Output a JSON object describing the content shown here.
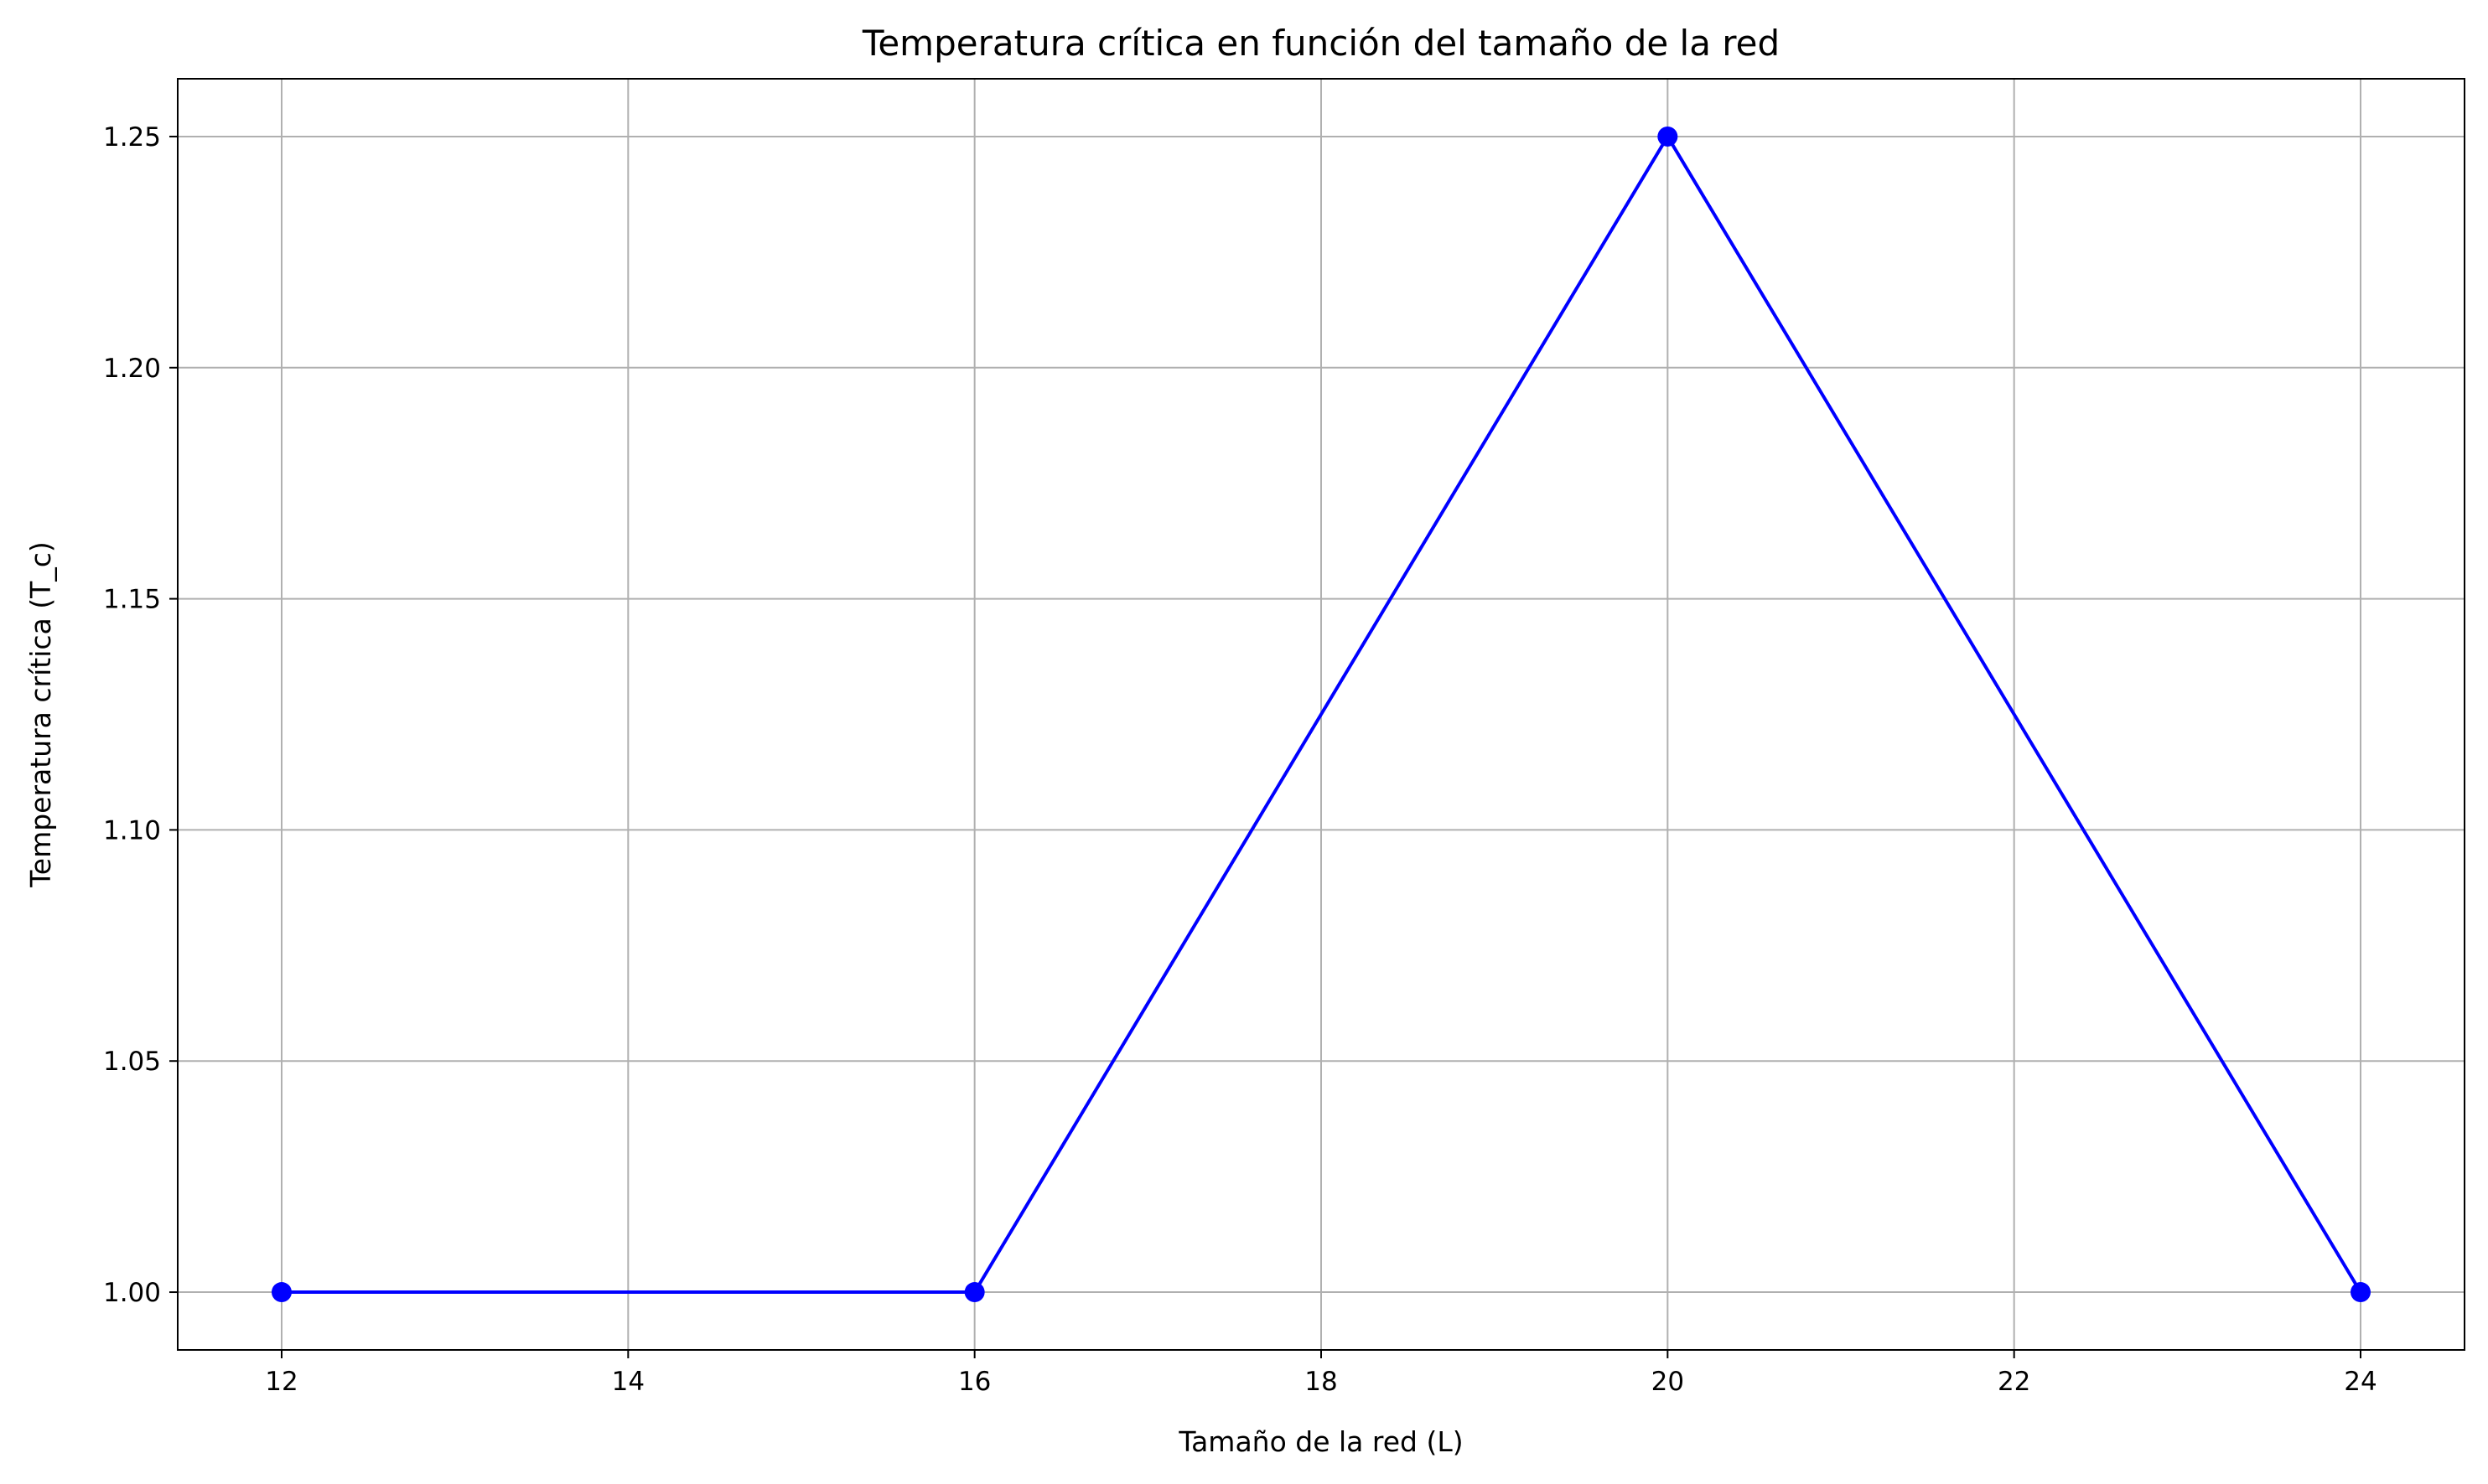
{
  "chart_data": {
    "type": "line",
    "title": "Temperatura crítica en función del tamaño de la red",
    "xlabel": "Tamaño de la red (L)",
    "ylabel": "Temperatura crítica (T_c)",
    "xlim": [
      11.4,
      24.6
    ],
    "ylim": [
      0.9875,
      1.2625
    ],
    "xticks": [
      12,
      14,
      16,
      18,
      20,
      22,
      24
    ],
    "xtick_labels": [
      "12",
      "14",
      "16",
      "18",
      "20",
      "22",
      "24"
    ],
    "yticks": [
      1.0,
      1.05,
      1.1,
      1.15,
      1.2,
      1.25
    ],
    "ytick_labels": [
      "1.00",
      "1.05",
      "1.10",
      "1.15",
      "1.20",
      "1.25"
    ],
    "grid": true,
    "x": [
      12,
      16,
      20,
      24
    ],
    "series": [
      {
        "values": [
          1.0,
          1.0,
          1.25,
          1.0
        ],
        "color": "#0000ff",
        "marker": "circle"
      }
    ],
    "grid_color": "#b0b0b0",
    "axis_color": "#000000"
  }
}
